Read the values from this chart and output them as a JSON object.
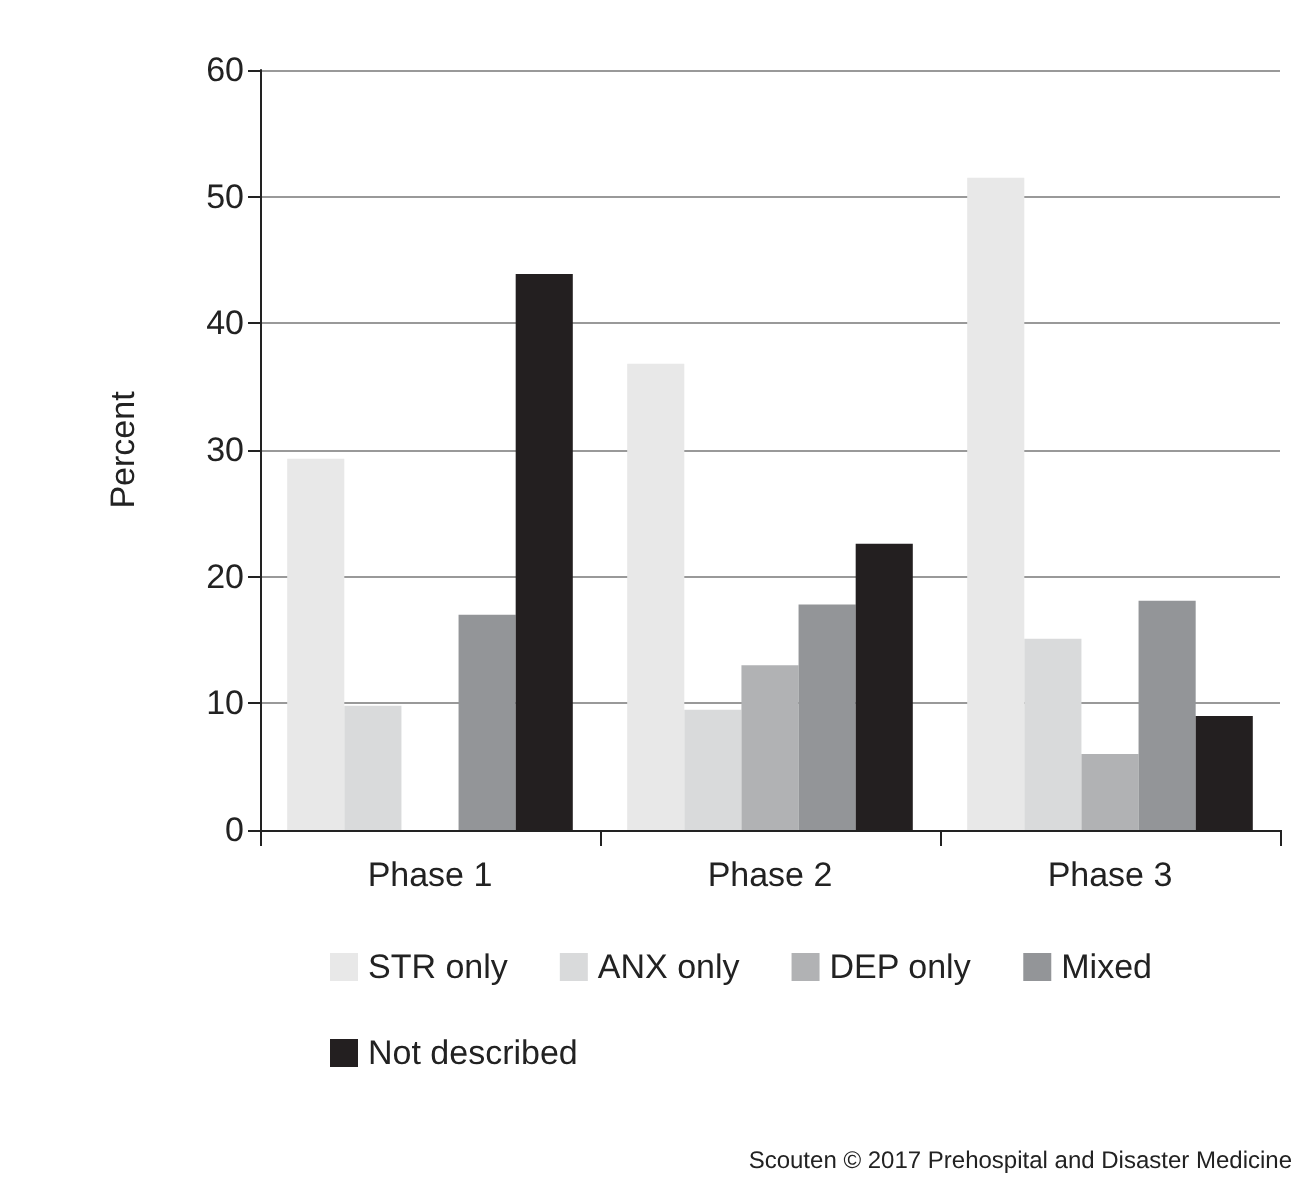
{
  "chart_data": {
    "type": "bar",
    "ylabel": "Percent",
    "categories": [
      "Phase 1",
      "Phase 2",
      "Phase 3"
    ],
    "series": [
      {
        "name": "STR only",
        "color": "#e8e8e8",
        "values": [
          29.3,
          36.8,
          51.5
        ]
      },
      {
        "name": "ANX only",
        "color": "#d9dadb",
        "values": [
          9.8,
          9.5,
          15.1
        ]
      },
      {
        "name": "DEP only",
        "color": "#b1b2b4",
        "values": [
          0,
          13,
          6
        ]
      },
      {
        "name": "Mixed",
        "color": "#939598",
        "values": [
          17,
          17.8,
          18.1
        ]
      },
      {
        "name": "Not described",
        "color": "#231f20",
        "values": [
          43.9,
          22.6,
          9
        ]
      }
    ],
    "ylim": [
      0,
      60
    ],
    "yticks": [
      0,
      10,
      20,
      30,
      40,
      50,
      60
    ],
    "grid": "y",
    "legend": "bottom",
    "annotations": [
      "Scouten © 2017 Prehospital and Disaster Medicine"
    ]
  }
}
